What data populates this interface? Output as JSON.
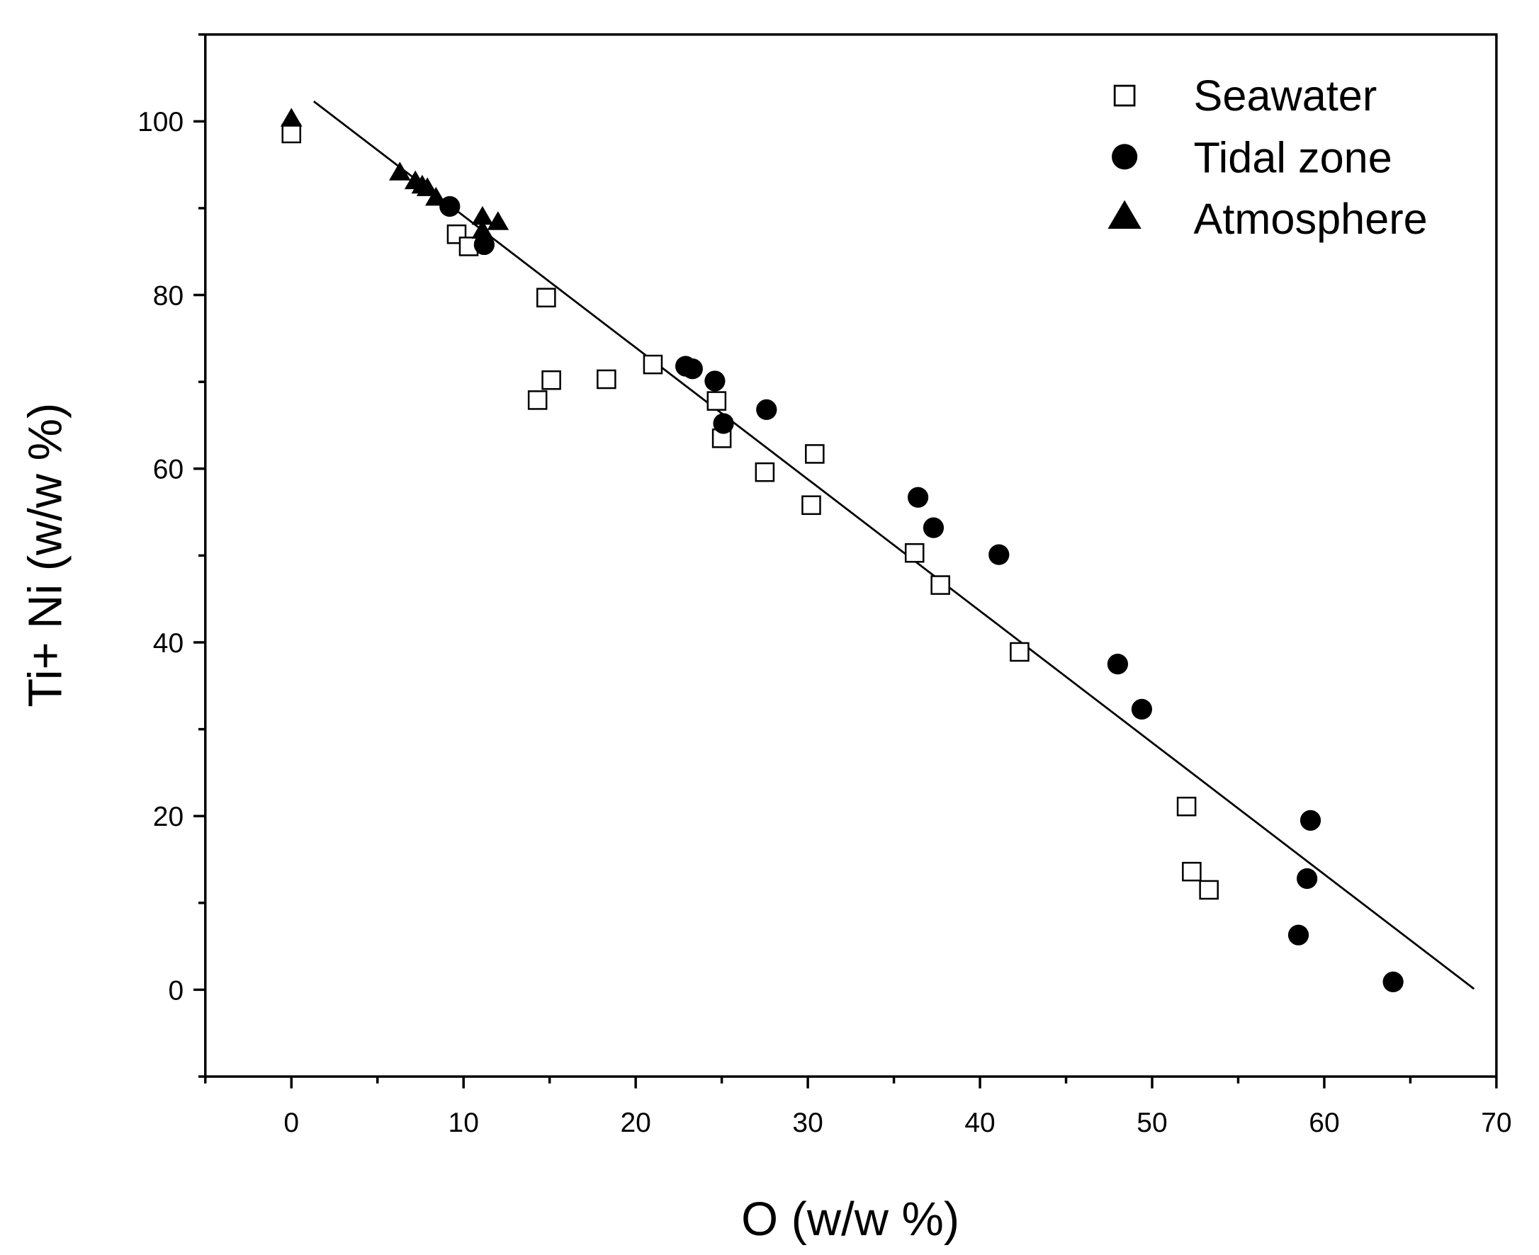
{
  "chart_data": {
    "type": "scatter",
    "title": "",
    "xlabel": "O (w/w %)",
    "ylabel": "Ti+ Ni (w/w %)",
    "xlim": [
      -5,
      70
    ],
    "ylim": [
      -10,
      110
    ],
    "xticks": [
      0,
      10,
      20,
      30,
      40,
      50,
      60,
      70
    ],
    "yticks": [
      0,
      20,
      40,
      60,
      80,
      100
    ],
    "grid": false,
    "legend_position": "top-right",
    "series": [
      {
        "name": "Seawater",
        "marker": "open-square",
        "color": "#000000",
        "x": [
          0,
          9.6,
          10.3,
          14.8,
          14.3,
          15.1,
          18.3,
          21.0,
          24.7,
          25.0,
          27.5,
          30.4,
          30.2,
          36.2,
          37.7,
          42.3,
          52.0,
          52.3,
          53.3
        ],
        "y": [
          98.6,
          87.0,
          85.6,
          79.7,
          67.9,
          70.2,
          70.3,
          72.0,
          67.8,
          63.5,
          59.6,
          61.7,
          55.8,
          50.3,
          46.6,
          38.9,
          21.1,
          13.6,
          11.5
        ]
      },
      {
        "name": "Tidal zone",
        "marker": "filled-circle",
        "color": "#000000",
        "x": [
          9.2,
          11.2,
          22.9,
          23.3,
          24.6,
          25.1,
          27.6,
          36.4,
          37.3,
          41.1,
          48.0,
          49.4,
          59.2,
          59.0,
          58.5,
          64.0
        ],
        "y": [
          90.2,
          85.8,
          71.8,
          71.5,
          70.1,
          65.2,
          66.8,
          56.7,
          53.2,
          50.1,
          37.5,
          32.3,
          19.5,
          12.8,
          6.3,
          0.9
        ]
      },
      {
        "name": "Atmosphere",
        "marker": "filled-triangle",
        "color": "#000000",
        "x": [
          0,
          6.3,
          7.2,
          7.6,
          7.9,
          8.4,
          11.1,
          11.1,
          12.0
        ],
        "y": [
          100.3,
          94.1,
          93.1,
          92.6,
          92.3,
          91.2,
          89.0,
          87.4,
          88.4
        ]
      }
    ],
    "fit_line": {
      "x": [
        1.3,
        68.7
      ],
      "y": [
        102.3,
        0.1
      ]
    }
  }
}
